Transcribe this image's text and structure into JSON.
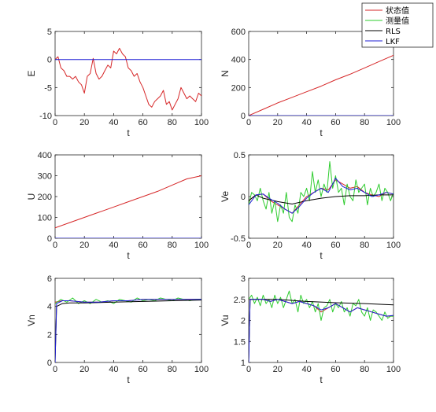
{
  "legend": {
    "entries": [
      {
        "label": "状态值",
        "color": "#d62728"
      },
      {
        "label": "测量值",
        "color": "#2ecc2e"
      },
      {
        "label": "RLS",
        "color": "#000000"
      },
      {
        "label": "LKF",
        "color": "#1f1fd6"
      }
    ]
  },
  "chart_data": [
    {
      "type": "line",
      "xlabel": "t",
      "ylabel": "E",
      "xlim": [
        0,
        100
      ],
      "ylim": [
        -10,
        5
      ],
      "xticks": [
        0,
        20,
        40,
        60,
        80,
        100
      ],
      "yticks": [
        -10,
        -5,
        0,
        5
      ],
      "series": [
        {
          "name": "状态值",
          "color": "#d62728",
          "x": [
            0,
            2,
            4,
            6,
            8,
            10,
            12,
            14,
            16,
            18,
            20,
            22,
            24,
            26,
            28,
            30,
            32,
            34,
            36,
            38,
            40,
            42,
            44,
            46,
            48,
            50,
            52,
            54,
            56,
            58,
            60,
            62,
            64,
            66,
            68,
            70,
            72,
            74,
            76,
            78,
            80,
            82,
            84,
            86,
            88,
            90,
            92,
            94,
            96,
            98,
            100
          ],
          "y": [
            0,
            0.5,
            -1.5,
            -2,
            -3,
            -3,
            -3.5,
            -3,
            -4,
            -4.5,
            -6,
            -3,
            -2.5,
            0.2,
            -2.5,
            -3.5,
            -3,
            -2,
            -1,
            -1.5,
            1.5,
            1,
            2,
            1,
            0.5,
            -1.5,
            -2,
            -3,
            -2.5,
            -4,
            -5,
            -6.5,
            -8,
            -8.5,
            -7.5,
            -7,
            -6.5,
            -5.5,
            -8,
            -7.5,
            -9,
            -8,
            -7,
            -5,
            -6,
            -7,
            -6.5,
            -7,
            -7.5,
            -6,
            -6.5
          ]
        },
        {
          "name": "LKF",
          "color": "#1f1fd6",
          "x": [
            0,
            100
          ],
          "y": [
            0,
            0
          ]
        }
      ]
    },
    {
      "type": "line",
      "xlabel": "t",
      "ylabel": "N",
      "xlim": [
        0,
        100
      ],
      "ylim": [
        0,
        600
      ],
      "xticks": [
        0,
        20,
        40,
        60,
        80,
        100
      ],
      "yticks": [
        0,
        200,
        400,
        600
      ],
      "series": [
        {
          "name": "状态值",
          "color": "#d62728",
          "x": [
            0,
            10,
            20,
            30,
            40,
            50,
            60,
            70,
            80,
            90,
            100
          ],
          "y": [
            0,
            45,
            90,
            130,
            170,
            210,
            255,
            295,
            340,
            385,
            430
          ]
        },
        {
          "name": "LKF",
          "color": "#1f1fd6",
          "x": [
            0,
            100
          ],
          "y": [
            0,
            0
          ]
        }
      ]
    },
    {
      "type": "line",
      "xlabel": "t",
      "ylabel": "U",
      "xlim": [
        0,
        100
      ],
      "ylim": [
        0,
        400
      ],
      "xticks": [
        0,
        20,
        40,
        60,
        80,
        100
      ],
      "yticks": [
        0,
        100,
        200,
        300,
        400
      ],
      "series": [
        {
          "name": "状态值",
          "color": "#d62728",
          "x": [
            0,
            10,
            20,
            30,
            40,
            50,
            60,
            70,
            80,
            90,
            100
          ],
          "y": [
            50,
            75,
            100,
            125,
            150,
            175,
            200,
            225,
            255,
            285,
            300
          ]
        },
        {
          "name": "LKF",
          "color": "#1f1fd6",
          "x": [
            0,
            100
          ],
          "y": [
            0,
            0
          ]
        }
      ]
    },
    {
      "type": "line",
      "xlabel": "t",
      "ylabel": "Ve",
      "xlim": [
        0,
        100
      ],
      "ylim": [
        -0.5,
        0.5
      ],
      "xticks": [
        0,
        20,
        40,
        60,
        80,
        100
      ],
      "yticks": [
        -0.5,
        0,
        0.5
      ],
      "series": [
        {
          "name": "状态值",
          "color": "#d62728",
          "x": [
            0,
            5,
            10,
            15,
            20,
            25,
            30,
            35,
            40,
            45,
            50,
            55,
            60,
            65,
            70,
            75,
            80,
            85,
            90,
            95,
            100
          ],
          "y": [
            -0.05,
            0.02,
            0.03,
            -0.05,
            -0.1,
            -0.15,
            -0.2,
            -0.1,
            0,
            0.05,
            0.1,
            0.08,
            0.2,
            0.15,
            0.1,
            0.12,
            0.05,
            0.02,
            0,
            0.05,
            0.03
          ]
        },
        {
          "name": "测量值",
          "color": "#2ecc2e",
          "x": [
            0,
            2,
            4,
            6,
            8,
            10,
            12,
            14,
            16,
            18,
            20,
            22,
            24,
            26,
            28,
            30,
            32,
            34,
            36,
            38,
            40,
            42,
            44,
            46,
            48,
            50,
            52,
            54,
            56,
            58,
            60,
            62,
            64,
            66,
            68,
            70,
            72,
            74,
            76,
            78,
            80,
            82,
            84,
            86,
            88,
            90,
            92,
            94,
            96,
            98,
            100
          ],
          "y": [
            -0.1,
            0.05,
            0.02,
            -0.05,
            0.1,
            -0.05,
            -0.15,
            0.05,
            -0.2,
            -0.05,
            -0.3,
            -0.1,
            -0.2,
            0.05,
            -0.25,
            -0.3,
            -0.1,
            -0.2,
            0.05,
            0,
            0.1,
            -0.05,
            0.3,
            0.05,
            0.2,
            0,
            0.15,
            0.05,
            0.42,
            0.1,
            0.25,
            0.05,
            0.1,
            -0.1,
            0.15,
            0,
            -0.05,
            0.2,
            0.05,
            0.1,
            0.15,
            -0.1,
            0.1,
            0,
            0.05,
            0.15,
            -0.05,
            0.1,
            0.05,
            -0.05,
            0.05
          ]
        },
        {
          "name": "RLS",
          "color": "#000000",
          "x": [
            0,
            5,
            10,
            20,
            30,
            40,
            50,
            60,
            70,
            80,
            90,
            100
          ],
          "y": [
            -0.05,
            0.02,
            -0.02,
            -0.06,
            -0.09,
            -0.05,
            -0.02,
            0,
            0.01,
            0.01,
            0.02,
            0.02
          ]
        },
        {
          "name": "LKF",
          "color": "#1f1fd6",
          "x": [
            0,
            5,
            10,
            15,
            20,
            25,
            30,
            35,
            40,
            45,
            50,
            55,
            60,
            65,
            70,
            75,
            80,
            85,
            90,
            95,
            100
          ],
          "y": [
            -0.1,
            0.02,
            0.03,
            -0.03,
            -0.08,
            -0.15,
            -0.2,
            -0.12,
            -0.02,
            0.05,
            0.1,
            0.05,
            0.22,
            0.12,
            0.08,
            0.1,
            0.05,
            0,
            0.02,
            0.05,
            0.03
          ]
        }
      ]
    },
    {
      "type": "line",
      "xlabel": "t",
      "ylabel": "Vn",
      "xlim": [
        0,
        100
      ],
      "ylim": [
        0,
        6
      ],
      "xticks": [
        0,
        20,
        40,
        60,
        80,
        100
      ],
      "yticks": [
        0,
        2,
        4,
        6
      ],
      "series": [
        {
          "name": "状态值",
          "color": "#d62728",
          "x": [
            0,
            5,
            10,
            20,
            30,
            40,
            50,
            60,
            70,
            80,
            90,
            100
          ],
          "y": [
            4.3,
            4.4,
            4.4,
            4.3,
            4.3,
            4.4,
            4.4,
            4.5,
            4.5,
            4.5,
            4.5,
            4.5
          ]
        },
        {
          "name": "测量值",
          "color": "#2ecc2e",
          "x": [
            0,
            4,
            8,
            12,
            16,
            20,
            24,
            28,
            32,
            36,
            40,
            44,
            48,
            52,
            56,
            60,
            64,
            68,
            72,
            76,
            80,
            84,
            88,
            92,
            96,
            100
          ],
          "y": [
            4.2,
            4.5,
            4.3,
            4.6,
            4.2,
            4.4,
            4.2,
            4.5,
            4.3,
            4.4,
            4.2,
            4.5,
            4.4,
            4.3,
            4.6,
            4.4,
            4.5,
            4.4,
            4.6,
            4.5,
            4.4,
            4.6,
            4.5,
            4.4,
            4.5,
            4.5
          ]
        },
        {
          "name": "RLS",
          "color": "#000000",
          "x": [
            0,
            1,
            5,
            10,
            20,
            40,
            60,
            80,
            100
          ],
          "y": [
            0,
            4.0,
            4.2,
            4.25,
            4.25,
            4.3,
            4.35,
            4.4,
            4.45
          ]
        },
        {
          "name": "LKF",
          "color": "#1f1fd6",
          "x": [
            0,
            1,
            5,
            10,
            20,
            30,
            40,
            50,
            60,
            70,
            80,
            90,
            100
          ],
          "y": [
            0,
            4.2,
            4.4,
            4.4,
            4.3,
            4.3,
            4.4,
            4.4,
            4.5,
            4.5,
            4.5,
            4.5,
            4.5
          ]
        }
      ]
    },
    {
      "type": "line",
      "xlabel": "t",
      "ylabel": "Vu",
      "xlim": [
        0,
        100
      ],
      "ylim": [
        1,
        3
      ],
      "xticks": [
        0,
        20,
        40,
        60,
        80,
        100
      ],
      "yticks": [
        1,
        1.5,
        2,
        2.5,
        3
      ],
      "series": [
        {
          "name": "状态值",
          "color": "#d62728",
          "x": [
            0,
            5,
            10,
            15,
            20,
            25,
            30,
            35,
            40,
            45,
            50,
            55,
            60,
            65,
            70,
            75,
            80,
            85,
            90,
            95,
            100
          ],
          "y": [
            2.5,
            2.5,
            2.5,
            2.45,
            2.5,
            2.45,
            2.4,
            2.45,
            2.4,
            2.35,
            2.2,
            2.3,
            2.4,
            2.3,
            2.2,
            2.3,
            2.25,
            2.2,
            2.15,
            2.1,
            2.1
          ]
        },
        {
          "name": "测量值",
          "color": "#2ecc2e",
          "x": [
            0,
            2,
            4,
            6,
            8,
            10,
            12,
            14,
            16,
            18,
            20,
            22,
            24,
            26,
            28,
            30,
            32,
            34,
            36,
            38,
            40,
            42,
            44,
            46,
            48,
            50,
            52,
            54,
            56,
            58,
            60,
            62,
            64,
            66,
            68,
            70,
            72,
            74,
            76,
            78,
            80,
            82,
            84,
            86,
            88,
            90,
            92,
            94,
            96,
            98,
            100
          ],
          "y": [
            2.5,
            2.6,
            2.4,
            2.55,
            2.35,
            2.6,
            2.4,
            2.5,
            2.3,
            2.6,
            2.4,
            2.55,
            2.3,
            2.5,
            2.7,
            2.4,
            2.5,
            2.2,
            2.6,
            2.4,
            2.5,
            2.3,
            2.45,
            2.2,
            2.4,
            2.0,
            2.3,
            2.35,
            2.5,
            2.2,
            2.4,
            2.3,
            2.45,
            2.2,
            2.3,
            2.1,
            2.4,
            2.35,
            2.5,
            2.2,
            2.1,
            2.3,
            2.0,
            2.25,
            2.2,
            2.1,
            2.0,
            2.2,
            2.05,
            2.1,
            2.1
          ]
        },
        {
          "name": "RLS",
          "color": "#000000",
          "x": [
            0,
            1,
            5,
            10,
            20,
            40,
            60,
            80,
            100
          ],
          "y": [
            1,
            2.5,
            2.5,
            2.5,
            2.5,
            2.45,
            2.42,
            2.4,
            2.37
          ]
        },
        {
          "name": "LKF",
          "color": "#1f1fd6",
          "x": [
            0,
            1,
            5,
            10,
            15,
            20,
            25,
            30,
            35,
            40,
            45,
            50,
            55,
            60,
            65,
            70,
            75,
            80,
            85,
            90,
            95,
            100
          ],
          "y": [
            1,
            2.5,
            2.5,
            2.5,
            2.45,
            2.5,
            2.45,
            2.4,
            2.45,
            2.4,
            2.35,
            2.25,
            2.3,
            2.4,
            2.3,
            2.2,
            2.3,
            2.25,
            2.2,
            2.15,
            2.1,
            2.12
          ]
        }
      ]
    }
  ]
}
